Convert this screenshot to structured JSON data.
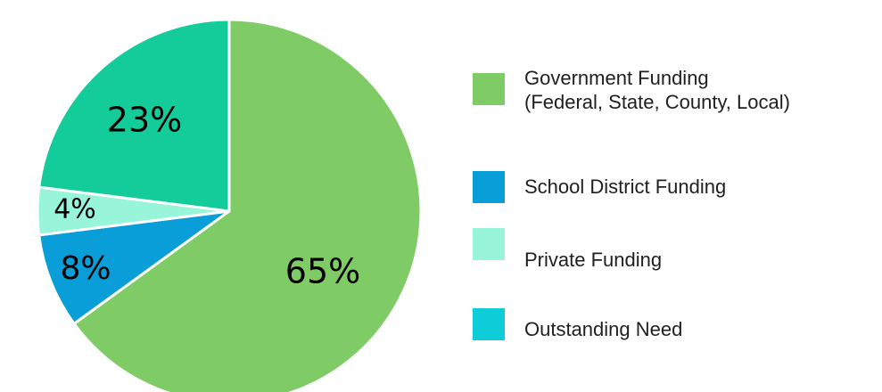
{
  "chart_data": {
    "type": "pie",
    "slices": [
      {
        "name": "Government Funding\n(Federal, State, County, Local)",
        "value": 65,
        "label": "65%",
        "color": "#7fcc66"
      },
      {
        "name": "School District Funding",
        "value": 8,
        "label": "8%",
        "color": "#0a9ed9"
      },
      {
        "name": "Private Funding",
        "value": 4,
        "label": "4%",
        "color": "#99f5d9"
      },
      {
        "name": "Outstanding Need",
        "value": 23,
        "label": "23%",
        "color": "#14cc99"
      }
    ],
    "legend": {
      "placement": "right",
      "entries": [
        {
          "label": "Government Funding\n(Federal, State, County, Local)",
          "color": "#7fcc66"
        },
        {
          "label": "School District Funding",
          "color": "#0a9ed9"
        },
        {
          "label": "Private Funding",
          "color": "#99f5d9"
        },
        {
          "label": "Outstanding Need",
          "color": "#0fccd9"
        }
      ]
    }
  }
}
